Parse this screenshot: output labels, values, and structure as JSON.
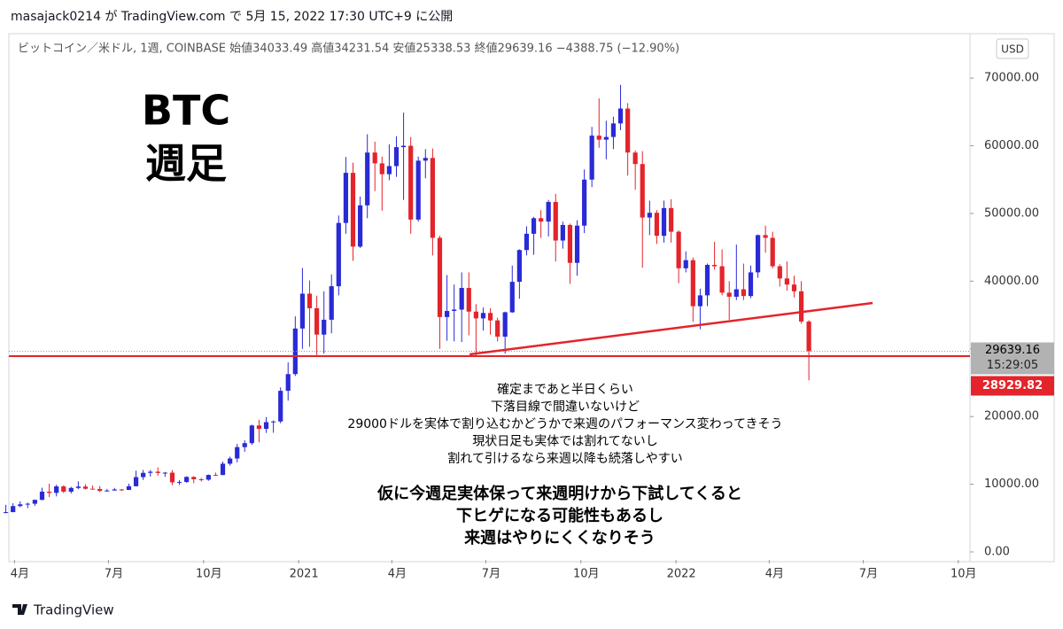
{
  "header": "masajack0214 が TradingView.com で 5月 15, 2022 17:30 UTC+9 に公開",
  "brand": "TradingView",
  "chart_data": {
    "type": "candlestick",
    "symbol_line": "ビットコイン／米ドル, 1週, COINBASE  始値34033.49  高値34231.54  安値25338.53  終値29639.16  −4388.75 (−12.90%)",
    "currency": "USD",
    "up_color": "#2a2ad6",
    "down_color": "#e3242b",
    "xlim": [
      2020.232,
      2022.779
    ],
    "xticks": [
      {
        "value": 2020.247,
        "label": "4月"
      },
      {
        "value": 2020.496,
        "label": "7月"
      },
      {
        "value": 2020.748,
        "label": "10月"
      },
      2021,
      {
        "value": 2021.247,
        "label": "4月"
      },
      {
        "value": 2021.496,
        "label": "7月"
      },
      {
        "value": 2021.748,
        "label": "10月"
      },
      2022,
      {
        "value": 2022.247,
        "label": "4月"
      },
      {
        "value": 2022.496,
        "label": "7月"
      },
      {
        "value": 2022.748,
        "label": "10月"
      }
    ],
    "ylim": [
      -1180,
      76300
    ],
    "yticks": [
      {
        "value": 0,
        "label": "0.00"
      },
      {
        "value": 10000,
        "label": "10000.00"
      },
      {
        "value": 20000,
        "label": "20000.00"
      },
      {
        "value": 30000,
        "label": "30000.00"
      },
      {
        "value": 40000,
        "label": "40000.00"
      },
      {
        "value": 50000,
        "label": "50000.00"
      },
      {
        "value": 60000,
        "label": "60000.00"
      },
      {
        "value": 70000,
        "label": "70000.00"
      }
    ],
    "x": [
      2020.224,
      2020.243,
      2020.262,
      2020.282,
      2020.301,
      2020.32,
      2020.339,
      2020.358,
      2020.377,
      2020.397,
      2020.416,
      2020.435,
      2020.454,
      2020.473,
      2020.492,
      2020.512,
      2020.531,
      2020.55,
      2020.569,
      2020.588,
      2020.607,
      2020.627,
      2020.646,
      2020.665,
      2020.684,
      2020.703,
      2020.722,
      2020.742,
      2020.761,
      2020.78,
      2020.799,
      2020.818,
      2020.837,
      2020.857,
      2020.876,
      2020.895,
      2020.914,
      2020.933,
      2020.952,
      2020.972,
      2020.991,
      2021.01,
      2021.029,
      2021.048,
      2021.067,
      2021.087,
      2021.106,
      2021.125,
      2021.144,
      2021.163,
      2021.182,
      2021.202,
      2021.221,
      2021.24,
      2021.259,
      2021.278,
      2021.297,
      2021.317,
      2021.336,
      2021.355,
      2021.374,
      2021.393,
      2021.412,
      2021.432,
      2021.451,
      2021.47,
      2021.489,
      2021.508,
      2021.527,
      2021.547,
      2021.566,
      2021.585,
      2021.604,
      2021.623,
      2021.642,
      2021.662,
      2021.681,
      2021.7,
      2021.719,
      2021.738,
      2021.757,
      2021.777,
      2021.796,
      2021.815,
      2021.834,
      2021.853,
      2021.872,
      2021.892,
      2021.911,
      2021.93,
      2021.949,
      2021.968,
      2021.987,
      2022.007,
      2022.026,
      2022.045,
      2022.064,
      2022.083,
      2022.102,
      2022.122,
      2022.141,
      2022.16,
      2022.179,
      2022.198,
      2022.217,
      2022.237,
      2022.256,
      2022.275,
      2022.294,
      2022.313,
      2022.332,
      2022.352
    ],
    "open": [
      5800,
      5880,
      6770,
      7030,
      7120,
      7690,
      8900,
      8720,
      9680,
      8900,
      9450,
      9660,
      9330,
      9300,
      9010,
      9070,
      9230,
      9160,
      9700,
      11050,
      11680,
      11850,
      11660,
      11710,
      10280,
      10330,
      11080,
      10730,
      10670,
      11370,
      11360,
      13030,
      13800,
      15480,
      16070,
      18680,
      18180,
      19170,
      19270,
      23800,
      26270,
      33000,
      38150,
      36000,
      32100,
      34300,
      39250,
      48600,
      56000,
      45100,
      51200,
      59000,
      57400,
      55800,
      57000,
      59800,
      60000,
      49100,
      57800,
      58200,
      46400,
      34700,
      35600,
      35800,
      39000,
      35500,
      34500,
      35300,
      34200,
      31800,
      35400,
      39900,
      44600,
      47000,
      49300,
      48800,
      51700,
      46000,
      48300,
      42700,
      48200,
      55000,
      61500,
      60900,
      61300,
      63300,
      65500,
      59000,
      57300,
      49400,
      50100,
      46700,
      50800,
      47300,
      41900,
      43100,
      36300,
      37900,
      42400,
      42200,
      38300,
      37700,
      38800,
      37800,
      41300,
      46800,
      46400,
      42200,
      40400,
      39500,
      38500,
      34033.49
    ],
    "high": [
      6950,
      7200,
      7470,
      7290,
      7730,
      9480,
      10070,
      9930,
      9840,
      9620,
      10430,
      9990,
      9800,
      9740,
      9300,
      9450,
      9290,
      10080,
      12000,
      12120,
      12100,
      12480,
      11800,
      12090,
      10600,
      11180,
      11180,
      10950,
      11440,
      11720,
      13350,
      14080,
      15960,
      16490,
      18810,
      19500,
      19920,
      19420,
      24300,
      28000,
      34800,
      41950,
      40100,
      37850,
      38500,
      41000,
      49700,
      58350,
      57500,
      52500,
      61700,
      60600,
      58400,
      60200,
      61400,
      64900,
      61300,
      58400,
      59500,
      59600,
      46700,
      40900,
      39500,
      41300,
      41300,
      36600,
      36100,
      36000,
      34600,
      35500,
      42300,
      44700,
      48100,
      49500,
      50500,
      52000,
      52900,
      48800,
      48500,
      49000,
      56500,
      62800,
      67000,
      63700,
      64300,
      69000,
      66300,
      59300,
      59200,
      51900,
      50500,
      51900,
      52100,
      47500,
      44400,
      43500,
      38900,
      42600,
      45800,
      44700,
      40000,
      45400,
      42600,
      42300,
      46900,
      48200,
      47300,
      42500,
      42900,
      40800,
      40000,
      34231.54
    ],
    "low": [
      5700,
      5860,
      6600,
      6470,
      6810,
      7630,
      8110,
      8200,
      8700,
      8630,
      9260,
      9220,
      9220,
      8830,
      8900,
      9040,
      9000,
      9140,
      9680,
      10630,
      11130,
      11270,
      11090,
      9880,
      9880,
      10220,
      10140,
      10400,
      10510,
      11260,
      11340,
      12760,
      13220,
      14800,
      15800,
      16200,
      17580,
      17600,
      19000,
      22350,
      26000,
      30000,
      30300,
      28800,
      29300,
      32300,
      37900,
      47000,
      43000,
      44900,
      49300,
      53300,
      50400,
      54900,
      55400,
      52000,
      47000,
      48800,
      55200,
      43800,
      30000,
      31200,
      31100,
      31000,
      32000,
      28800,
      32700,
      32100,
      31100,
      29300,
      35300,
      37400,
      43800,
      43900,
      46400,
      46600,
      42900,
      44800,
      39600,
      40800,
      47100,
      53900,
      59700,
      58000,
      59500,
      62300,
      55600,
      53500,
      42000,
      46800,
      45500,
      45700,
      45700,
      39700,
      41300,
      34000,
      32900,
      36300,
      41700,
      37900,
      34300,
      37200,
      37200,
      37500,
      40500,
      44200,
      41900,
      39200,
      38600,
      37600,
      33700,
      25338.53
    ],
    "close": [
      5880,
      6770,
      7030,
      7120,
      7690,
      8900,
      8720,
      9680,
      8900,
      9450,
      9660,
      9330,
      9300,
      9010,
      9070,
      9230,
      9160,
      9700,
      11050,
      11680,
      11850,
      11660,
      11710,
      10280,
      10330,
      11080,
      10730,
      10670,
      11370,
      11360,
      13030,
      13800,
      15480,
      16070,
      18680,
      18180,
      19170,
      19270,
      23800,
      26270,
      33000,
      38150,
      36000,
      32100,
      34300,
      39250,
      48600,
      56000,
      45100,
      51200,
      59000,
      57400,
      55800,
      57000,
      59800,
      60000,
      49100,
      57800,
      58200,
      46400,
      34700,
      35600,
      35800,
      39000,
      35500,
      34500,
      35300,
      34200,
      31800,
      35400,
      39900,
      44600,
      47000,
      49300,
      48800,
      51700,
      46000,
      48300,
      42700,
      48200,
      55000,
      61500,
      60900,
      61300,
      63300,
      65500,
      59000,
      57300,
      49400,
      50100,
      46700,
      50800,
      47300,
      41900,
      43100,
      36300,
      37900,
      42400,
      42200,
      38300,
      37700,
      38800,
      37800,
      41300,
      46800,
      46400,
      42200,
      40400,
      39500,
      38500,
      34033.49,
      29639.16
    ],
    "last_price": 29639.16,
    "countdown": "15:29:05",
    "hline": {
      "value": 28929.82,
      "color": "#e3242b"
    },
    "trendline": {
      "x": [
        2021.453,
        2022.521
      ],
      "y": [
        29190,
        36780
      ],
      "color": "#e3242b"
    },
    "annotation_title": [
      "BTC",
      "週足"
    ],
    "notes": [
      "確定まであと半日くらい",
      "下落目線で間違いないけど",
      "29000ドルを実体で割り込むかどうかで来週のパフォーマンス変わってきそう",
      "現状日足も実体では割れてないし",
      "割れて引けるなら来週以降も続落しやすい"
    ],
    "notes2": [
      "仮に今週足実体保って来週明けから下試してくると",
      "下ヒゲになる可能性もあるし",
      "来週はやりにくくなりそう"
    ]
  }
}
